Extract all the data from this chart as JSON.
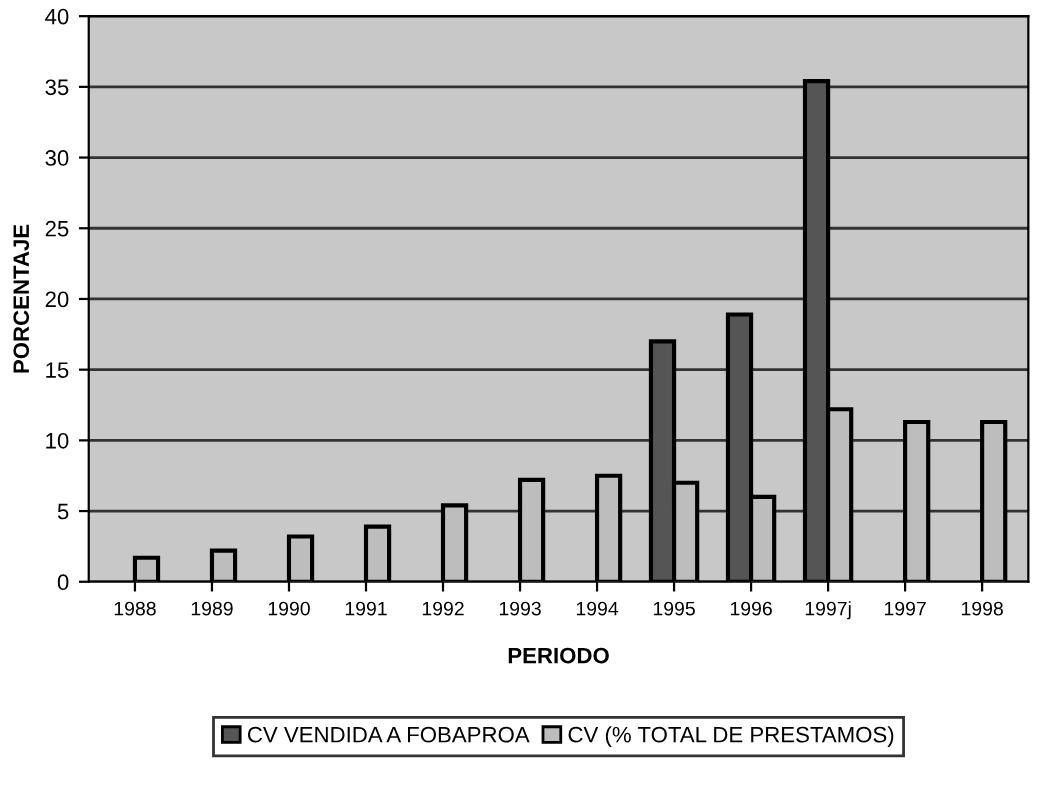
{
  "chart_data": {
    "type": "bar",
    "xlabel": "PERIODO",
    "ylabel": "PORCENTAJE",
    "categories": [
      "1988",
      "1989",
      "1990",
      "1991",
      "1992",
      "1993",
      "1994",
      "1995",
      "1996",
      "1997j",
      "1997",
      "1998"
    ],
    "series": [
      {
        "name": "CV VENDIDA A FOBAPROA",
        "color": "#555555",
        "values": [
          null,
          null,
          null,
          null,
          null,
          null,
          null,
          17.0,
          18.9,
          35.4,
          null,
          null
        ]
      },
      {
        "name": "CV (% TOTAL DE PRESTAMOS)",
        "color": "#bdbdbd",
        "values": [
          1.7,
          2.2,
          3.2,
          3.9,
          5.4,
          7.2,
          7.5,
          7.0,
          6.0,
          12.2,
          11.3,
          11.3
        ]
      }
    ],
    "ylim": [
      0,
      40
    ],
    "yticks": [
      0,
      5,
      10,
      15,
      20,
      25,
      30,
      35,
      40
    ],
    "grid": "y",
    "legend": "bottom"
  }
}
